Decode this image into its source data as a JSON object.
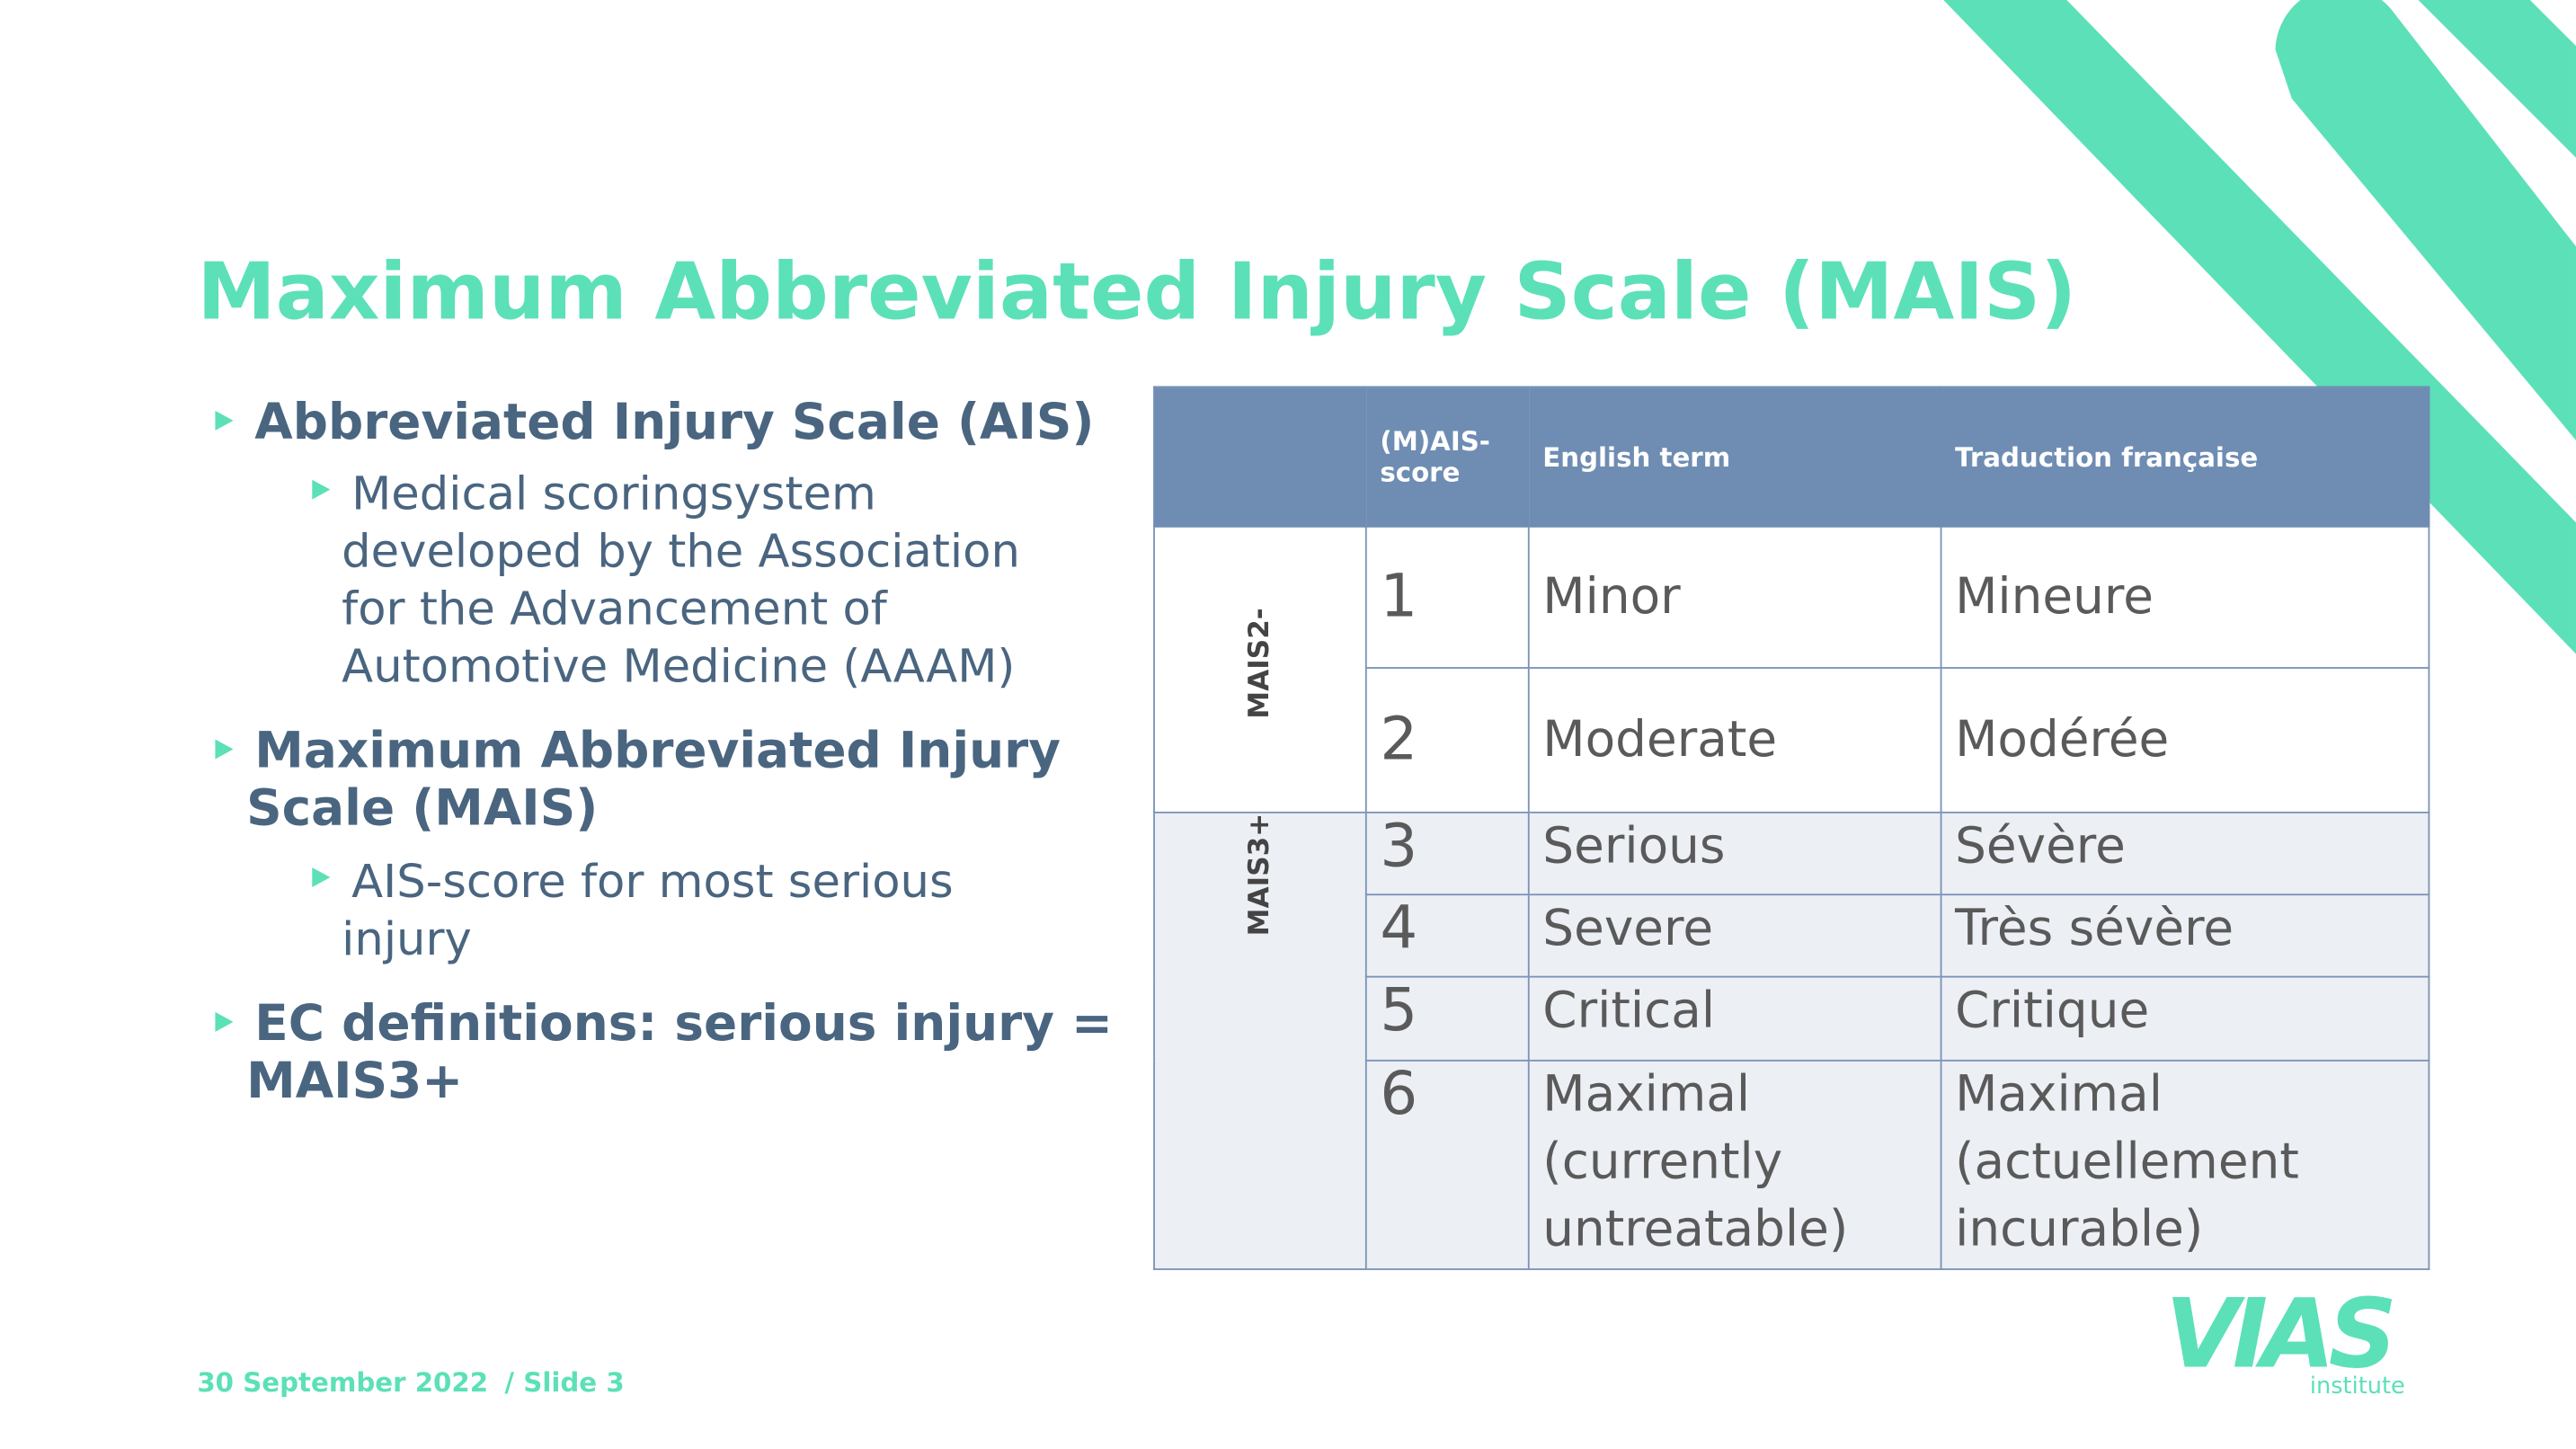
{
  "title": "Maximum Abbreviated Injury Scale (MAIS)",
  "bullets": [
    {
      "lines": [
        "Abbreviated Injury Scale (AIS)"
      ],
      "sub": [
        {
          "lines": [
            "Medical scoringsystem",
            "developed by the Association",
            "for the Advancement of",
            "Automotive Medicine (AAAM)"
          ]
        }
      ]
    },
    {
      "lines": [
        "Maximum Abbreviated Injury",
        "Scale (MAIS)"
      ],
      "sub": [
        {
          "lines": [
            "AIS-score for most serious",
            "injury"
          ]
        }
      ]
    },
    {
      "lines": [
        "EC definitions: serious injury =",
        "MAIS3+"
      ],
      "sub": []
    }
  ],
  "table": {
    "header": [
      "(M)AIS-score",
      "English term",
      "Traduction française"
    ],
    "groups": [
      {
        "label": "MAIS2-",
        "rows": [
          [
            "1",
            "Minor",
            "Mineure"
          ],
          [
            "2",
            "Moderate",
            "Modérée"
          ]
        ]
      },
      {
        "label": "MAIS3+",
        "rows": [
          [
            "3",
            "Serious",
            "Sévère"
          ],
          [
            "4",
            "Severe",
            "Très sévère"
          ],
          [
            "5",
            "Critical",
            "Critique"
          ],
          [
            "6",
            "Maximal (currently untreatable)",
            "Maximal (actuellement incurable)"
          ]
        ]
      }
    ]
  },
  "footer": {
    "date": "30 September 2022",
    "slide": "/ Slide 3"
  },
  "logo": {
    "name": "VIAS",
    "sub": "institute"
  }
}
